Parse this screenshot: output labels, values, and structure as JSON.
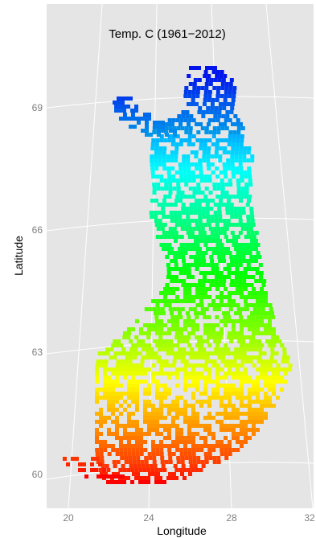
{
  "title": "Temp. C (1961−2012)",
  "x_axis": {
    "label": "Longitude",
    "ticks": [
      "20",
      "24",
      "28",
      "32"
    ]
  },
  "y_axis": {
    "label": "Latitude",
    "ticks": [
      "60",
      "63",
      "66",
      "69"
    ]
  },
  "colors": {
    "panel_bg": "#e5e5e5",
    "grid": "#ffffff",
    "scale_warm": "#e00000",
    "scale_mid": "#e8ff00",
    "scale_cold": "#0010ff"
  },
  "chart_data": {
    "type": "heatmap",
    "title": "Temp. C (1961−2012)",
    "xlabel": "Longitude",
    "ylabel": "Latitude",
    "x_ticks": [
      20,
      24,
      28,
      32
    ],
    "y_ticks": [
      60,
      63,
      66,
      69
    ],
    "projection": "conic",
    "color_scale": "rainbow: red (warm, south) to blue (cold, north)",
    "grid": true
  }
}
